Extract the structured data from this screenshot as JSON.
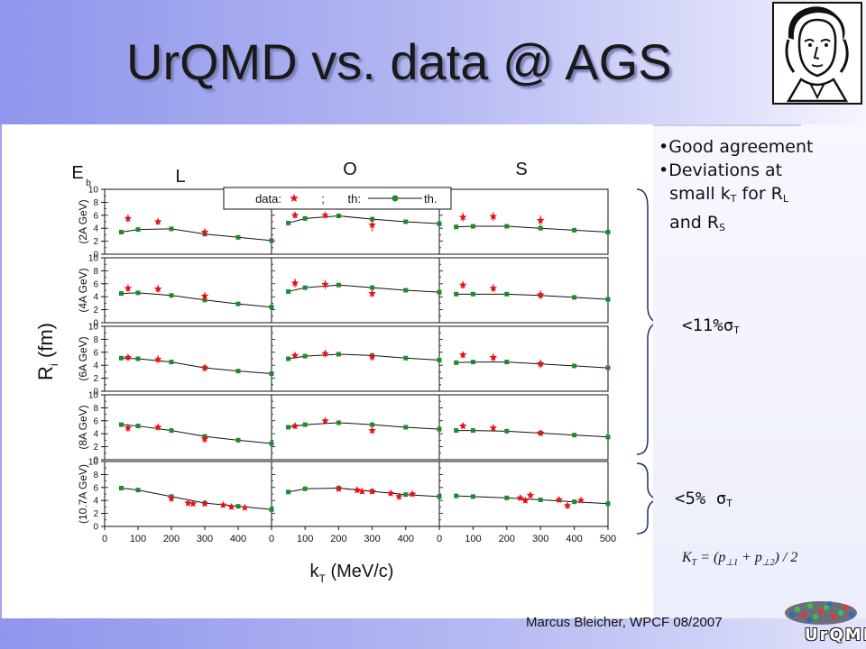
{
  "slide": {
    "title": "UrQMD vs. data @ AGS",
    "footer": "Marcus Bleicher, WPCF 08/2007",
    "bullets": [
      {
        "pre": "•Good agreement",
        "sub": "",
        "post": ""
      },
      {
        "pre": "•Deviations at",
        "sub": "",
        "post": ""
      },
      {
        "pre": "  small k",
        "sub": "T",
        "post": " for R"
      },
      {
        "pre": "  and R",
        "sub": "S",
        "post": ""
      }
    ],
    "bullet3_sub2": "L",
    "pct1": {
      "pre": "<11%σ",
      "sub": "T"
    },
    "pct2": {
      "pre": "<5% σ",
      "sub": "T"
    },
    "formula": {
      "lhs": "K",
      "lhs_sub": "T",
      "mid": " = (p",
      "sub1": "⊥1",
      "plus": " + p",
      "sub2": "⊥2",
      "end": ") / 2"
    },
    "logo_text": "UrQMD",
    "colors": {
      "data": "#e8111b",
      "theory": "#1e8a2c",
      "line": "#111111",
      "title_shadow": "#7b7fb8"
    }
  },
  "chart_data": {
    "type": "scatter",
    "title": "",
    "xlabel": "k",
    "xlabel_sub": "T",
    "xlabel_unit": " (MeV/c)",
    "ylabel": "R",
    "ylabel_sub": "i",
    "ylabel_unit": " (fm)",
    "column_labels": [
      "L",
      "O",
      "S"
    ],
    "corner_label": "E",
    "corner_sub": "b",
    "legend": {
      "data_label": "data:",
      "sep": ";",
      "theory_label": "th:",
      "theory_end": "th."
    },
    "row_labels": [
      "(2A GeV)",
      "(4A GeV)",
      "(6A GeV)",
      "(8A GeV)",
      "(10.7A GeV)"
    ],
    "y_ticks": [
      0,
      2,
      4,
      6,
      8,
      10
    ],
    "ylim": [
      0,
      10
    ],
    "xlim": [
      0,
      500
    ],
    "x_ticks": [
      0,
      100,
      200,
      300,
      400
    ],
    "x_ticks_last": [
      0,
      100,
      200,
      300,
      400,
      500
    ],
    "theory": [
      [
        [
          [
            50,
            3.4
          ],
          [
            100,
            3.8
          ],
          [
            200,
            3.9
          ],
          [
            300,
            3.1
          ],
          [
            400,
            2.6
          ],
          [
            500,
            2.1
          ]
        ],
        [
          [
            50,
            4.8
          ],
          [
            100,
            5.5
          ],
          [
            200,
            5.9
          ],
          [
            300,
            5.4
          ],
          [
            400,
            5.0
          ],
          [
            500,
            4.7
          ]
        ],
        [
          [
            50,
            4.2
          ],
          [
            100,
            4.3
          ],
          [
            200,
            4.3
          ],
          [
            300,
            4.0
          ],
          [
            400,
            3.7
          ],
          [
            500,
            3.4
          ]
        ]
      ],
      [
        [
          [
            50,
            4.5
          ],
          [
            100,
            4.6
          ],
          [
            200,
            4.2
          ],
          [
            300,
            3.5
          ],
          [
            400,
            2.9
          ],
          [
            500,
            2.4
          ]
        ],
        [
          [
            50,
            4.8
          ],
          [
            100,
            5.4
          ],
          [
            200,
            5.8
          ],
          [
            300,
            5.4
          ],
          [
            400,
            5.0
          ],
          [
            500,
            4.7
          ]
        ],
        [
          [
            50,
            4.4
          ],
          [
            100,
            4.4
          ],
          [
            200,
            4.4
          ],
          [
            300,
            4.2
          ],
          [
            400,
            3.9
          ],
          [
            500,
            3.6
          ]
        ]
      ],
      [
        [
          [
            50,
            5.1
          ],
          [
            100,
            5.0
          ],
          [
            200,
            4.5
          ],
          [
            300,
            3.6
          ],
          [
            400,
            3.1
          ],
          [
            500,
            2.7
          ]
        ],
        [
          [
            50,
            5.0
          ],
          [
            100,
            5.4
          ],
          [
            200,
            5.7
          ],
          [
            300,
            5.5
          ],
          [
            400,
            5.1
          ],
          [
            500,
            4.8
          ]
        ],
        [
          [
            50,
            4.4
          ],
          [
            100,
            4.5
          ],
          [
            200,
            4.5
          ],
          [
            300,
            4.2
          ],
          [
            400,
            3.9
          ],
          [
            500,
            3.6
          ]
        ]
      ],
      [
        [
          [
            50,
            5.4
          ],
          [
            100,
            5.2
          ],
          [
            200,
            4.5
          ],
          [
            300,
            3.6
          ],
          [
            400,
            3.0
          ],
          [
            500,
            2.5
          ]
        ],
        [
          [
            50,
            5.0
          ],
          [
            100,
            5.4
          ],
          [
            200,
            5.7
          ],
          [
            300,
            5.4
          ],
          [
            400,
            5.0
          ],
          [
            500,
            4.7
          ]
        ],
        [
          [
            50,
            4.5
          ],
          [
            100,
            4.5
          ],
          [
            200,
            4.4
          ],
          [
            300,
            4.1
          ],
          [
            400,
            3.8
          ],
          [
            500,
            3.5
          ]
        ]
      ],
      [
        [
          [
            50,
            5.9
          ],
          [
            100,
            5.6
          ],
          [
            200,
            4.6
          ],
          [
            300,
            3.6
          ],
          [
            400,
            3.1
          ],
          [
            500,
            2.6
          ]
        ],
        [
          [
            50,
            5.3
          ],
          [
            100,
            5.8
          ],
          [
            200,
            5.9
          ],
          [
            300,
            5.4
          ],
          [
            400,
            4.9
          ],
          [
            500,
            4.6
          ]
        ],
        [
          [
            50,
            4.7
          ],
          [
            100,
            4.6
          ],
          [
            200,
            4.4
          ],
          [
            300,
            4.1
          ],
          [
            400,
            3.8
          ],
          [
            500,
            3.5
          ]
        ]
      ]
    ],
    "data": [
      [
        [
          [
            70,
            5.5,
            0.6
          ],
          [
            160,
            5.0,
            0.5
          ],
          [
            300,
            3.4,
            0.6
          ]
        ],
        [
          [
            70,
            6.0,
            0.5
          ],
          [
            160,
            6.0,
            0.5
          ],
          [
            300,
            4.5,
            1.0
          ]
        ],
        [
          [
            70,
            5.7,
            0.7
          ],
          [
            160,
            5.8,
            0.7
          ],
          [
            300,
            5.2,
            0.8
          ]
        ]
      ],
      [
        [
          [
            70,
            5.3,
            0.6
          ],
          [
            160,
            5.2,
            0.6
          ],
          [
            300,
            4.1,
            0.6
          ]
        ],
        [
          [
            70,
            6.1,
            0.7
          ],
          [
            160,
            5.9,
            0.7
          ],
          [
            300,
            4.5,
            0.6
          ]
        ],
        [
          [
            70,
            5.8,
            0.6
          ],
          [
            160,
            5.3,
            0.6
          ],
          [
            300,
            4.3,
            0.7
          ]
        ]
      ],
      [
        [
          [
            70,
            5.2,
            0.5
          ],
          [
            160,
            4.9,
            0.6
          ],
          [
            300,
            3.6,
            0.6
          ]
        ],
        [
          [
            70,
            5.5,
            0.5
          ],
          [
            160,
            5.8,
            0.6
          ],
          [
            300,
            5.3,
            0.6
          ]
        ],
        [
          [
            70,
            5.6,
            0.5
          ],
          [
            160,
            5.2,
            0.6
          ],
          [
            300,
            4.2,
            0.7
          ]
        ]
      ],
      [
        [
          [
            70,
            4.9,
            0.6
          ],
          [
            160,
            5.0,
            0.5
          ],
          [
            300,
            3.2,
            0.6
          ]
        ],
        [
          [
            70,
            5.2,
            0.5
          ],
          [
            160,
            6.0,
            0.4
          ],
          [
            300,
            4.5,
            0.5
          ]
        ],
        [
          [
            70,
            5.2,
            0.4
          ],
          [
            160,
            4.9,
            0.4
          ],
          [
            300,
            4.1,
            0.4
          ]
        ]
      ],
      [
        [
          [
            200,
            4.3,
            0.5
          ],
          [
            250,
            3.6,
            0.4
          ],
          [
            265,
            3.5,
            0.4
          ],
          [
            300,
            3.5,
            0.4
          ],
          [
            355,
            3.3,
            0.4
          ],
          [
            380,
            3.0,
            0.4
          ],
          [
            420,
            2.9,
            0.3
          ]
        ],
        [
          [
            200,
            5.8,
            0.4
          ],
          [
            255,
            5.6,
            0.4
          ],
          [
            270,
            5.4,
            0.4
          ],
          [
            300,
            5.4,
            0.4
          ],
          [
            355,
            5.1,
            0.4
          ],
          [
            380,
            4.6,
            0.5
          ],
          [
            420,
            5.0,
            0.4
          ]
        ],
        [
          [
            240,
            4.4,
            0.4
          ],
          [
            255,
            4.0,
            0.4
          ],
          [
            270,
            4.8,
            0.4
          ],
          [
            355,
            4.1,
            0.4
          ],
          [
            380,
            3.2,
            0.5
          ],
          [
            420,
            4.0,
            0.4
          ]
        ]
      ]
    ],
    "grid": false,
    "legend_position": "top"
  }
}
